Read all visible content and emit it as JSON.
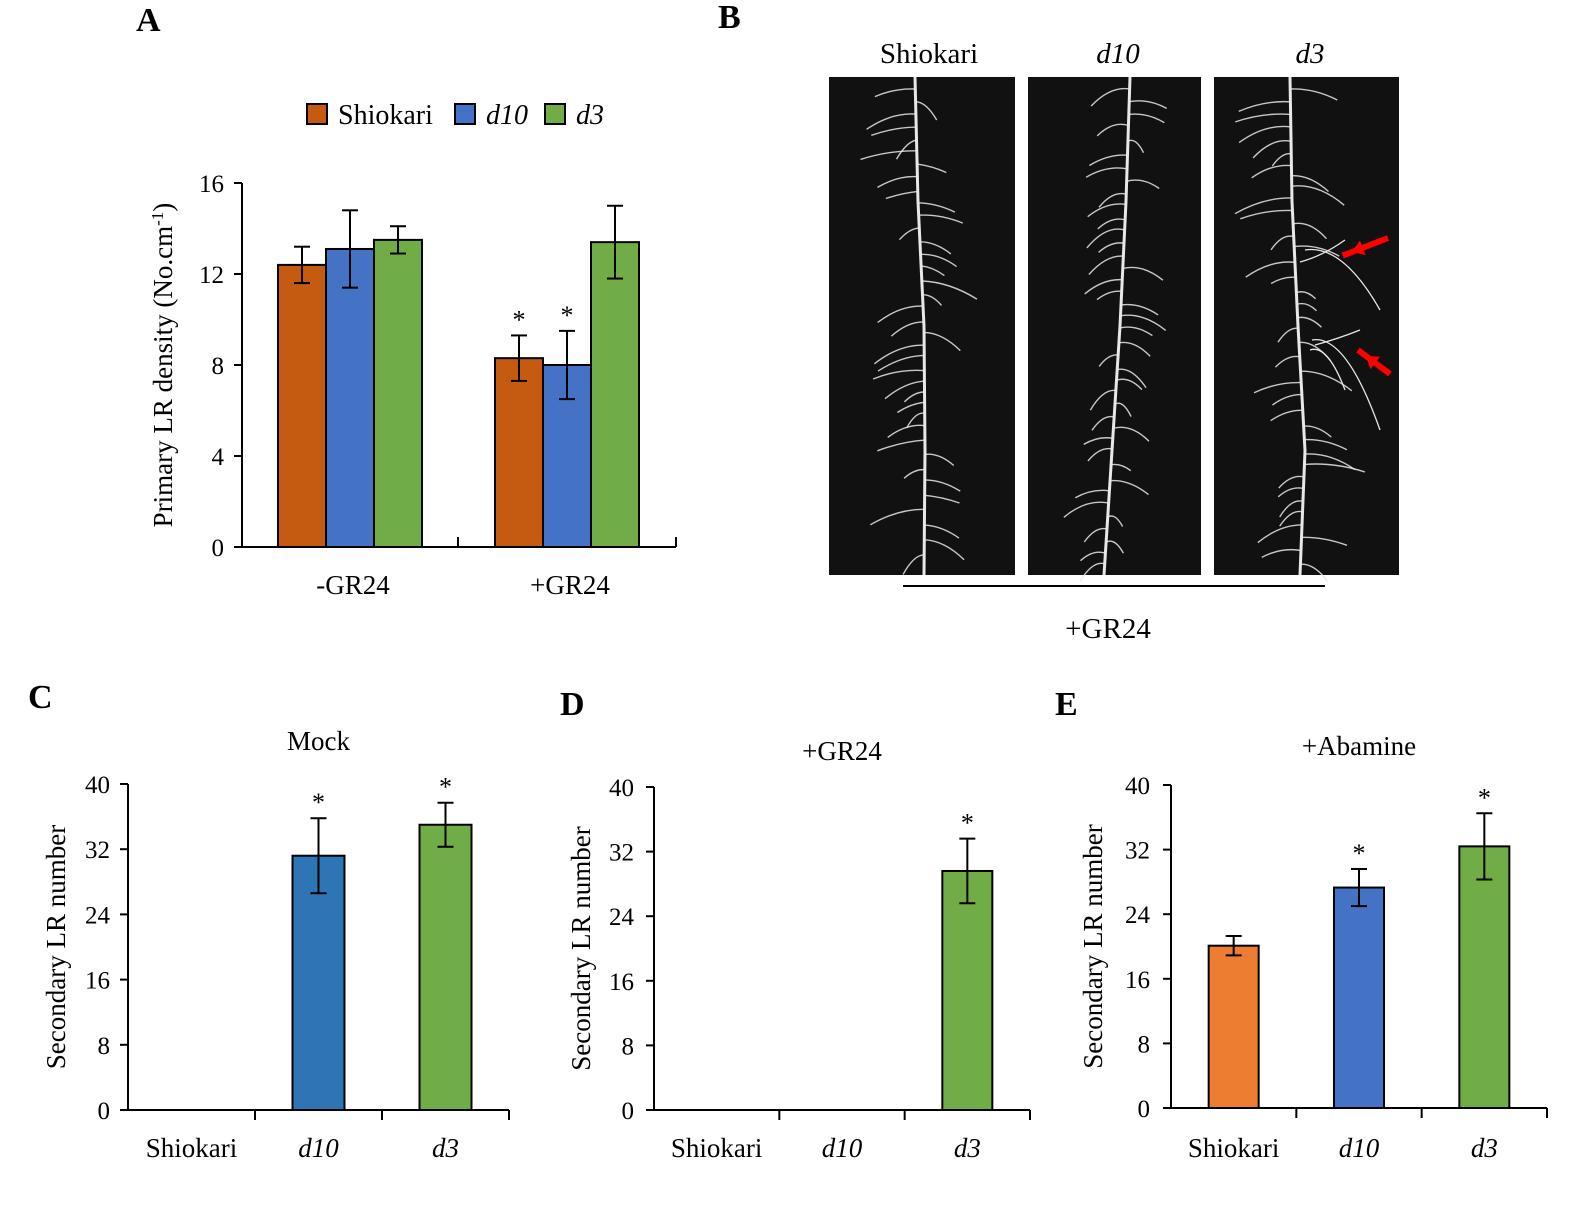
{
  "colors": {
    "shiokari_A": "#c55a11",
    "d10_A": "#4472c4",
    "d3_A": "#70ad47",
    "shiokari_E": "#ed7d31",
    "d10_C": "#2e75b6",
    "d10_E": "#4472c4",
    "d3": "#70ad47",
    "photo_bg": "#111111",
    "root": "#e8e8e8",
    "arrow": "#ff0000"
  },
  "panels": {
    "A": {
      "letter": "A"
    },
    "B": {
      "letter": "B",
      "photo_labels": [
        "Shiokari",
        "d10",
        "d3"
      ],
      "photo_label_italic": [
        false,
        true,
        true
      ],
      "treatment": "+GR24"
    },
    "C": {
      "letter": "C"
    },
    "D": {
      "letter": "D"
    },
    "E": {
      "letter": "E"
    }
  },
  "chart_data": [
    {
      "panel": "A",
      "type": "bar",
      "title": "",
      "categories": [
        "-GR24",
        "+GR24"
      ],
      "series": [
        {
          "name": "Shiokari",
          "italic": false,
          "color": "#c55a11",
          "values": [
            12.4,
            8.3
          ],
          "errors": [
            0.8,
            1.0
          ],
          "significant": [
            false,
            true
          ]
        },
        {
          "name": "d10",
          "italic": true,
          "color": "#4472c4",
          "values": [
            13.1,
            8.0
          ],
          "errors": [
            1.7,
            1.5
          ],
          "significant": [
            false,
            true
          ]
        },
        {
          "name": "d3",
          "italic": true,
          "color": "#70ad47",
          "values": [
            13.5,
            13.4
          ],
          "errors": [
            0.6,
            1.6
          ],
          "significant": [
            false,
            false
          ]
        }
      ],
      "xlabel": "",
      "ylabel": "Primary LR density (No.cm-1)",
      "ylabel_parts": [
        "Primary LR density (No.cm",
        "-1",
        ")"
      ],
      "ylim": [
        0,
        16
      ],
      "yticks": [
        0,
        4,
        8,
        12,
        16
      ],
      "legend": "top",
      "significance_mark": "*"
    },
    {
      "panel": "C",
      "type": "bar",
      "title": "Mock",
      "categories": [
        "Shiokari",
        "d10",
        "d3"
      ],
      "category_italic": [
        false,
        true,
        true
      ],
      "values": [
        0,
        31.2,
        35.0
      ],
      "errors": [
        0,
        4.6,
        2.7
      ],
      "colors": [
        "#ed7d31",
        "#2e75b6",
        "#70ad47"
      ],
      "significant": [
        false,
        true,
        true
      ],
      "xlabel": "",
      "ylabel": "Secondary LR number",
      "ylim": [
        0,
        40
      ],
      "yticks": [
        0,
        8,
        16,
        24,
        32,
        40
      ],
      "significance_mark": "*"
    },
    {
      "panel": "D",
      "type": "bar",
      "title": "+GR24",
      "categories": [
        "Shiokari",
        "d10",
        "d3"
      ],
      "category_italic": [
        false,
        true,
        true
      ],
      "values": [
        0,
        0,
        29.6
      ],
      "errors": [
        0,
        0,
        4.0
      ],
      "colors": [
        "#ed7d31",
        "#4472c4",
        "#70ad47"
      ],
      "significant": [
        false,
        false,
        true
      ],
      "xlabel": "",
      "ylabel": "Secondary LR number",
      "ylim": [
        0,
        40
      ],
      "yticks": [
        0,
        8,
        16,
        24,
        32,
        40
      ],
      "significance_mark": "*"
    },
    {
      "panel": "E",
      "type": "bar",
      "title": "+Abamine",
      "categories": [
        "Shiokari",
        "d10",
        "d3"
      ],
      "category_italic": [
        false,
        true,
        true
      ],
      "values": [
        20.1,
        27.3,
        32.4
      ],
      "errors": [
        1.2,
        2.3,
        4.1
      ],
      "colors": [
        "#ed7d31",
        "#4472c4",
        "#70ad47"
      ],
      "significant": [
        false,
        true,
        true
      ],
      "xlabel": "",
      "ylabel": "Secondary LR number",
      "ylim": [
        0,
        40
      ],
      "yticks": [
        0,
        8,
        16,
        24,
        32,
        40
      ],
      "significance_mark": "*"
    }
  ]
}
